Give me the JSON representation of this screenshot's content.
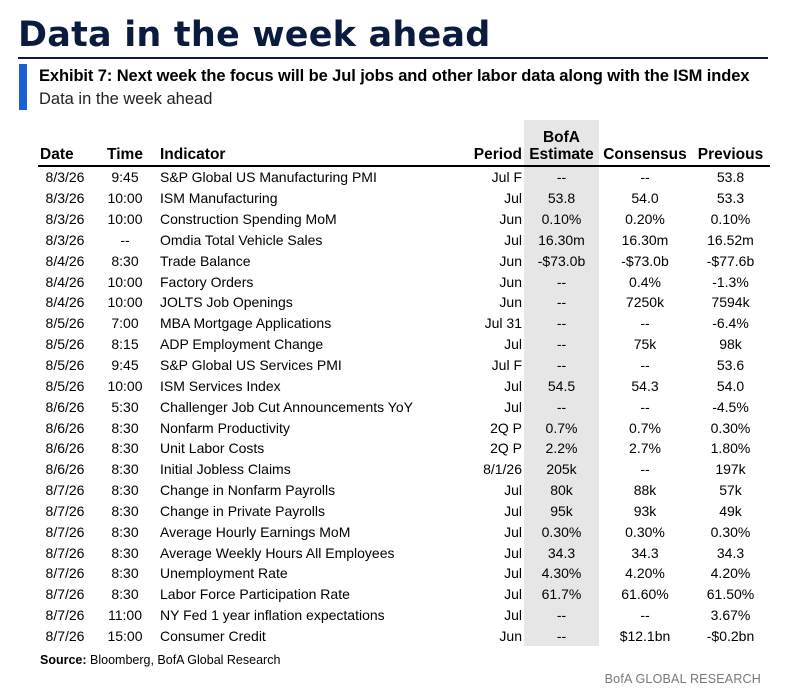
{
  "page_title": "Data in the week ahead",
  "exhibit_title": "Exhibit 7: Next week the focus will be Jul jobs and other labor data along with the ISM index",
  "exhibit_subtitle": "Data in the week ahead",
  "columns": {
    "date": "Date",
    "time": "Time",
    "indicator": "Indicator",
    "period": "Period",
    "estimate_line1": "BofA",
    "estimate_line2": "Estimate",
    "consensus": "Consensus",
    "previous": "Previous"
  },
  "rows": [
    {
      "date": "8/3/26",
      "time": "9:45",
      "indicator": "S&P Global US Manufacturing PMI",
      "period": "Jul F",
      "estimate": "--",
      "consensus": "--",
      "previous": "53.8"
    },
    {
      "date": "8/3/26",
      "time": "10:00",
      "indicator": "ISM Manufacturing",
      "period": "Jul",
      "estimate": "53.8",
      "consensus": "54.0",
      "previous": "53.3"
    },
    {
      "date": "8/3/26",
      "time": "10:00",
      "indicator": "Construction Spending MoM",
      "period": "Jun",
      "estimate": "0.10%",
      "consensus": "0.20%",
      "previous": "0.10%"
    },
    {
      "date": "8/3/26",
      "time": "--",
      "indicator": "Omdia Total Vehicle Sales",
      "period": "Jul",
      "estimate": "16.30m",
      "consensus": "16.30m",
      "previous": "16.52m"
    },
    {
      "date": "8/4/26",
      "time": "8:30",
      "indicator": "Trade Balance",
      "period": "Jun",
      "estimate": "-$73.0b",
      "consensus": "-$73.0b",
      "previous": "-$77.6b"
    },
    {
      "date": "8/4/26",
      "time": "10:00",
      "indicator": "Factory Orders",
      "period": "Jun",
      "estimate": "--",
      "consensus": "0.4%",
      "previous": "-1.3%"
    },
    {
      "date": "8/4/26",
      "time": "10:00",
      "indicator": "JOLTS Job Openings",
      "period": "Jun",
      "estimate": "--",
      "consensus": "7250k",
      "previous": "7594k"
    },
    {
      "date": "8/5/26",
      "time": "7:00",
      "indicator": "MBA Mortgage Applications",
      "period": "Jul 31",
      "estimate": "--",
      "consensus": "--",
      "previous": "-6.4%"
    },
    {
      "date": "8/5/26",
      "time": "8:15",
      "indicator": "ADP Employment Change",
      "period": "Jul",
      "estimate": "--",
      "consensus": "75k",
      "previous": "98k"
    },
    {
      "date": "8/5/26",
      "time": "9:45",
      "indicator": "S&P Global US Services PMI",
      "period": "Jul F",
      "estimate": "--",
      "consensus": "--",
      "previous": "53.6"
    },
    {
      "date": "8/5/26",
      "time": "10:00",
      "indicator": "ISM Services Index",
      "period": "Jul",
      "estimate": "54.5",
      "consensus": "54.3",
      "previous": "54.0"
    },
    {
      "date": "8/6/26",
      "time": "5:30",
      "indicator": "Challenger Job Cut Announcements YoY",
      "period": "Jul",
      "estimate": "--",
      "consensus": "--",
      "previous": "-4.5%"
    },
    {
      "date": "8/6/26",
      "time": "8:30",
      "indicator": "Nonfarm Productivity",
      "period": "2Q P",
      "estimate": "0.7%",
      "consensus": "0.7%",
      "previous": "0.30%"
    },
    {
      "date": "8/6/26",
      "time": "8:30",
      "indicator": "Unit Labor Costs",
      "period": "2Q P",
      "estimate": "2.2%",
      "consensus": "2.7%",
      "previous": "1.80%"
    },
    {
      "date": "8/6/26",
      "time": "8:30",
      "indicator": "Initial Jobless Claims",
      "period": "8/1/26",
      "estimate": "205k",
      "consensus": "--",
      "previous": "197k"
    },
    {
      "date": "8/7/26",
      "time": "8:30",
      "indicator": "Change in Nonfarm Payrolls",
      "period": "Jul",
      "estimate": "80k",
      "consensus": "88k",
      "previous": "57k"
    },
    {
      "date": "8/7/26",
      "time": "8:30",
      "indicator": "Change in Private Payrolls",
      "period": "Jul",
      "estimate": "95k",
      "consensus": "93k",
      "previous": "49k"
    },
    {
      "date": "8/7/26",
      "time": "8:30",
      "indicator": "Average Hourly Earnings MoM",
      "period": "Jul",
      "estimate": "0.30%",
      "consensus": "0.30%",
      "previous": "0.30%"
    },
    {
      "date": "8/7/26",
      "time": "8:30",
      "indicator": "Average Weekly Hours All Employees",
      "period": "Jul",
      "estimate": "34.3",
      "consensus": "34.3",
      "previous": "34.3"
    },
    {
      "date": "8/7/26",
      "time": "8:30",
      "indicator": "Unemployment Rate",
      "period": "Jul",
      "estimate": "4.30%",
      "consensus": "4.20%",
      "previous": "4.20%"
    },
    {
      "date": "8/7/26",
      "time": "8:30",
      "indicator": "Labor Force Participation Rate",
      "period": "Jul",
      "estimate": "61.7%",
      "consensus": "61.60%",
      "previous": "61.50%"
    },
    {
      "date": "8/7/26",
      "time": "11:00",
      "indicator": "NY Fed 1 year inflation expectations",
      "period": "Jul",
      "estimate": "--",
      "consensus": "--",
      "previous": "3.67%"
    },
    {
      "date": "8/7/26",
      "time": "15:00",
      "indicator": "Consumer Credit",
      "period": "Jun",
      "estimate": "--",
      "consensus": "$12.1bn",
      "previous": "-$0.2bn"
    }
  ],
  "source_label": "Source:",
  "source_text": " Bloomberg, BofA Global Research",
  "brand": "BofA GLOBAL RESEARCH",
  "colors": {
    "title": "#0b1b3f",
    "accent": "#1a5fd6",
    "estimate_shade": "#e6e6e6"
  }
}
